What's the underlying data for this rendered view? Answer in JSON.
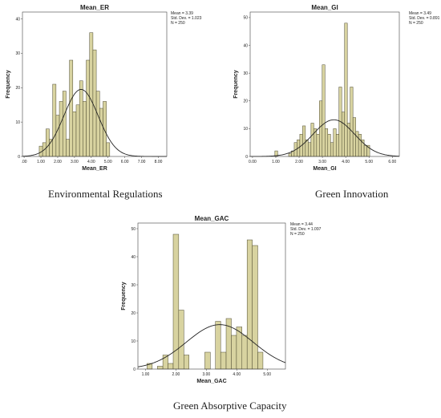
{
  "colors": {
    "bar_fill": "#d8d3a0",
    "bar_stroke": "#4d4a30",
    "curve": "#222222"
  },
  "captions": [
    "Environmental Regulations",
    "Green Innovation",
    "Green Absorptive Capacity"
  ],
  "chart_data": [
    {
      "type": "bar",
      "title": "Mean_ER",
      "xlabel": "Mean_ER",
      "ylabel": "Frequency",
      "stats": {
        "mean": "Mean = 3.39",
        "sd": "Std. Dev. = 1.023",
        "n": "N = 250"
      },
      "normal_curve": {
        "mean": 3.39,
        "sd": 1.023,
        "n": 250,
        "binwidth": 0.2
      },
      "xlim": [
        -0.1,
        8.5
      ],
      "ylim": [
        0,
        42
      ],
      "xticks": [
        0,
        1,
        2,
        3,
        4,
        5,
        6,
        7,
        8
      ],
      "xtick_labels": [
        ".00",
        "1.00",
        "2.00",
        "3.00",
        "4.00",
        "5.00",
        "6.00",
        "7.00",
        "8.00"
      ],
      "yticks": [
        0,
        10,
        20,
        30,
        40
      ],
      "bins": [
        {
          "x0": 0.9,
          "x1": 1.1,
          "count": 3
        },
        {
          "x0": 1.1,
          "x1": 1.3,
          "count": 4
        },
        {
          "x0": 1.3,
          "x1": 1.5,
          "count": 8
        },
        {
          "x0": 1.5,
          "x1": 1.7,
          "count": 5
        },
        {
          "x0": 1.7,
          "x1": 1.9,
          "count": 21
        },
        {
          "x0": 1.9,
          "x1": 2.1,
          "count": 12
        },
        {
          "x0": 2.1,
          "x1": 2.3,
          "count": 16
        },
        {
          "x0": 2.3,
          "x1": 2.5,
          "count": 19
        },
        {
          "x0": 2.5,
          "x1": 2.7,
          "count": 5
        },
        {
          "x0": 2.7,
          "x1": 2.9,
          "count": 28
        },
        {
          "x0": 2.9,
          "x1": 3.1,
          "count": 13
        },
        {
          "x0": 3.1,
          "x1": 3.3,
          "count": 15
        },
        {
          "x0": 3.3,
          "x1": 3.5,
          "count": 22
        },
        {
          "x0": 3.5,
          "x1": 3.7,
          "count": 16
        },
        {
          "x0": 3.7,
          "x1": 3.9,
          "count": 28
        },
        {
          "x0": 3.9,
          "x1": 4.1,
          "count": 36
        },
        {
          "x0": 4.1,
          "x1": 4.3,
          "count": 31
        },
        {
          "x0": 4.3,
          "x1": 4.5,
          "count": 19
        },
        {
          "x0": 4.5,
          "x1": 4.7,
          "count": 14
        },
        {
          "x0": 4.7,
          "x1": 4.9,
          "count": 16
        },
        {
          "x0": 4.9,
          "x1": 5.1,
          "count": 4
        }
      ]
    },
    {
      "type": "bar",
      "title": "Mean_GI",
      "xlabel": "Mean_GI",
      "ylabel": "Frequency",
      "stats": {
        "mean": "Mean = 3.49",
        "sd": "Std. Dev. = 0.891",
        "n": "N = 250"
      },
      "normal_curve": {
        "mean": 3.49,
        "sd": 0.891,
        "n": 250,
        "binwidth": 0.118
      },
      "xlim": [
        -0.1,
        6.3
      ],
      "ylim": [
        0,
        52
      ],
      "xticks": [
        0,
        1,
        2,
        3,
        4,
        5,
        6
      ],
      "xtick_labels": [
        "0.00",
        "1.00",
        "2.00",
        "3.00",
        "4.00",
        "5.00",
        "6.00"
      ],
      "yticks": [
        0,
        10,
        20,
        30,
        40,
        50
      ],
      "bins": [
        {
          "x0": 0.96,
          "x1": 1.08,
          "count": 2
        },
        {
          "x0": 1.55,
          "x1": 1.67,
          "count": 1
        },
        {
          "x0": 1.67,
          "x1": 1.79,
          "count": 2
        },
        {
          "x0": 1.79,
          "x1": 1.91,
          "count": 5
        },
        {
          "x0": 1.91,
          "x1": 2.03,
          "count": 6
        },
        {
          "x0": 2.03,
          "x1": 2.15,
          "count": 8
        },
        {
          "x0": 2.15,
          "x1": 2.27,
          "count": 11
        },
        {
          "x0": 2.27,
          "x1": 2.39,
          "count": 6
        },
        {
          "x0": 2.39,
          "x1": 2.51,
          "count": 5
        },
        {
          "x0": 2.51,
          "x1": 2.63,
          "count": 12
        },
        {
          "x0": 2.63,
          "x1": 2.75,
          "count": 10
        },
        {
          "x0": 2.75,
          "x1": 2.87,
          "count": 8
        },
        {
          "x0": 2.87,
          "x1": 2.99,
          "count": 20
        },
        {
          "x0": 2.99,
          "x1": 3.11,
          "count": 33
        },
        {
          "x0": 3.11,
          "x1": 3.23,
          "count": 10
        },
        {
          "x0": 3.23,
          "x1": 3.35,
          "count": 8
        },
        {
          "x0": 3.35,
          "x1": 3.47,
          "count": 5
        },
        {
          "x0": 3.47,
          "x1": 3.59,
          "count": 10
        },
        {
          "x0": 3.59,
          "x1": 3.71,
          "count": 8
        },
        {
          "x0": 3.71,
          "x1": 3.83,
          "count": 25
        },
        {
          "x0": 3.83,
          "x1": 3.95,
          "count": 16
        },
        {
          "x0": 3.95,
          "x1": 4.07,
          "count": 48
        },
        {
          "x0": 4.07,
          "x1": 4.19,
          "count": 12
        },
        {
          "x0": 4.19,
          "x1": 4.31,
          "count": 25
        },
        {
          "x0": 4.31,
          "x1": 4.43,
          "count": 14
        },
        {
          "x0": 4.43,
          "x1": 4.55,
          "count": 9
        },
        {
          "x0": 4.55,
          "x1": 4.67,
          "count": 8
        },
        {
          "x0": 4.67,
          "x1": 4.79,
          "count": 6
        },
        {
          "x0": 4.79,
          "x1": 4.91,
          "count": 4
        },
        {
          "x0": 4.91,
          "x1": 5.03,
          "count": 4
        }
      ]
    },
    {
      "type": "bar",
      "title": "Mean_GAC",
      "xlabel": "Mean_GAC",
      "ylabel": "Frequency",
      "stats": {
        "mean": "Mean = 3.44",
        "sd": "Std. Dev. = 1.097",
        "n": "N = 250"
      },
      "normal_curve": {
        "mean": 3.44,
        "sd": 1.097,
        "n": 250,
        "binwidth": 0.174
      },
      "xlim": [
        0.75,
        5.6
      ],
      "ylim": [
        0,
        52
      ],
      "xticks": [
        1,
        2,
        3,
        4,
        5
      ],
      "xtick_labels": [
        "1.00",
        "2.00",
        "3.00",
        "4.00",
        "5.00"
      ],
      "yticks": [
        0,
        10,
        20,
        30,
        40,
        50
      ],
      "bins": [
        {
          "x0": 1.05,
          "x1": 1.22,
          "count": 2
        },
        {
          "x0": 1.39,
          "x1": 1.57,
          "count": 1
        },
        {
          "x0": 1.57,
          "x1": 1.74,
          "count": 5
        },
        {
          "x0": 1.74,
          "x1": 1.91,
          "count": 2
        },
        {
          "x0": 1.91,
          "x1": 2.09,
          "count": 48
        },
        {
          "x0": 2.09,
          "x1": 2.26,
          "count": 21
        },
        {
          "x0": 2.26,
          "x1": 2.43,
          "count": 5
        },
        {
          "x0": 2.95,
          "x1": 3.13,
          "count": 6
        },
        {
          "x0": 3.3,
          "x1": 3.47,
          "count": 17
        },
        {
          "x0": 3.47,
          "x1": 3.65,
          "count": 6
        },
        {
          "x0": 3.65,
          "x1": 3.82,
          "count": 18
        },
        {
          "x0": 3.82,
          "x1": 3.99,
          "count": 12
        },
        {
          "x0": 3.99,
          "x1": 4.17,
          "count": 15
        },
        {
          "x0": 4.17,
          "x1": 4.34,
          "count": 12
        },
        {
          "x0": 4.34,
          "x1": 4.51,
          "count": 46
        },
        {
          "x0": 4.51,
          "x1": 4.69,
          "count": 44
        },
        {
          "x0": 4.69,
          "x1": 4.86,
          "count": 6
        }
      ]
    }
  ]
}
